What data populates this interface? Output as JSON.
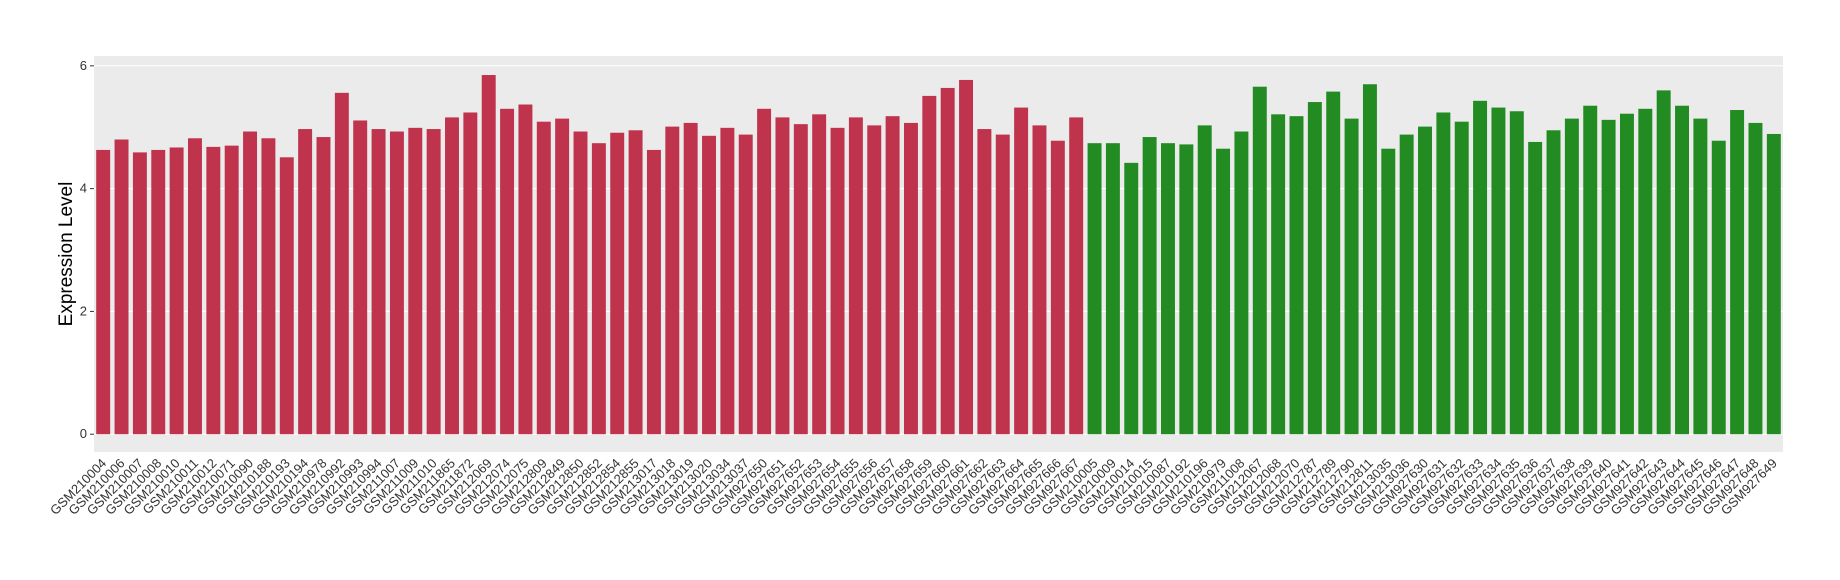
{
  "chart_data": {
    "type": "bar",
    "y_label": "Expression Level",
    "categories": [
      "GSM210004",
      "GSM210006",
      "GSM210007",
      "GSM210008",
      "GSM210010",
      "GSM210011",
      "GSM210012",
      "GSM210071",
      "GSM210090",
      "GSM210188",
      "GSM210193",
      "GSM210194",
      "GSM210978",
      "GSM210992",
      "GSM210993",
      "GSM210994",
      "GSM211007",
      "GSM211009",
      "GSM211010",
      "GSM211865",
      "GSM211872",
      "GSM212069",
      "GSM212074",
      "GSM212075",
      "GSM212809",
      "GSM212849",
      "GSM212850",
      "GSM212852",
      "GSM212854",
      "GSM212855",
      "GSM213017",
      "GSM213018",
      "GSM213019",
      "GSM213020",
      "GSM213034",
      "GSM213037",
      "GSM927650",
      "GSM927651",
      "GSM927652",
      "GSM927653",
      "GSM927654",
      "GSM927655",
      "GSM927656",
      "GSM927657",
      "GSM927658",
      "GSM927659",
      "GSM927660",
      "GSM927661",
      "GSM927662",
      "GSM927663",
      "GSM927664",
      "GSM927665",
      "GSM927666",
      "GSM927667",
      "GSM210005",
      "GSM210009",
      "GSM210014",
      "GSM210015",
      "GSM210087",
      "GSM210192",
      "GSM210196",
      "GSM210979",
      "GSM211008",
      "GSM212067",
      "GSM212068",
      "GSM212070",
      "GSM212787",
      "GSM212789",
      "GSM212790",
      "GSM212811",
      "GSM213035",
      "GSM213036",
      "GSM927630",
      "GSM927631",
      "GSM927632",
      "GSM927633",
      "GSM927634",
      "GSM927635",
      "GSM927636",
      "GSM927637",
      "GSM927638",
      "GSM927639",
      "GSM927640",
      "GSM927641",
      "GSM927642",
      "GSM927643",
      "GSM927644",
      "GSM927645",
      "GSM927646",
      "GSM927647",
      "GSM927648",
      "GSM927649"
    ],
    "values": [
      4.63,
      4.8,
      4.59,
      4.63,
      4.67,
      4.82,
      4.68,
      4.7,
      4.93,
      4.82,
      4.51,
      4.97,
      4.84,
      5.56,
      5.11,
      4.97,
      4.93,
      4.99,
      4.97,
      5.16,
      5.24,
      5.85,
      5.3,
      5.37,
      5.09,
      5.14,
      4.93,
      4.74,
      4.91,
      4.95,
      4.63,
      5.01,
      5.07,
      4.86,
      4.99,
      4.88,
      5.3,
      5.16,
      5.05,
      5.21,
      4.99,
      5.16,
      5.03,
      5.18,
      5.07,
      5.51,
      5.64,
      5.77,
      4.97,
      4.88,
      5.32,
      5.03,
      4.78,
      5.16,
      4.74,
      4.74,
      4.42,
      4.84,
      4.74,
      4.72,
      5.03,
      4.65,
      4.93,
      5.66,
      5.21,
      5.18,
      5.41,
      5.58,
      5.14,
      5.7,
      4.65,
      4.88,
      5.01,
      5.24,
      5.09,
      5.43,
      5.32,
      5.26,
      4.76,
      4.95,
      5.14,
      5.35,
      5.12,
      5.22,
      5.3,
      5.6,
      5.35,
      5.14,
      4.78,
      5.28,
      5.07,
      4.89
    ],
    "colors": [
      "#c0334d",
      "#c0334d",
      "#c0334d",
      "#c0334d",
      "#c0334d",
      "#c0334d",
      "#c0334d",
      "#c0334d",
      "#c0334d",
      "#c0334d",
      "#c0334d",
      "#c0334d",
      "#c0334d",
      "#c0334d",
      "#c0334d",
      "#c0334d",
      "#c0334d",
      "#c0334d",
      "#c0334d",
      "#c0334d",
      "#c0334d",
      "#c0334d",
      "#c0334d",
      "#c0334d",
      "#c0334d",
      "#c0334d",
      "#c0334d",
      "#c0334d",
      "#c0334d",
      "#c0334d",
      "#c0334d",
      "#c0334d",
      "#c0334d",
      "#c0334d",
      "#c0334d",
      "#c0334d",
      "#c0334d",
      "#c0334d",
      "#c0334d",
      "#c0334d",
      "#c0334d",
      "#c0334d",
      "#c0334d",
      "#c0334d",
      "#c0334d",
      "#c0334d",
      "#c0334d",
      "#c0334d",
      "#c0334d",
      "#c0334d",
      "#c0334d",
      "#c0334d",
      "#c0334d",
      "#c0334d",
      "#228b22",
      "#228b22",
      "#228b22",
      "#228b22",
      "#228b22",
      "#228b22",
      "#228b22",
      "#228b22",
      "#228b22",
      "#228b22",
      "#228b22",
      "#228b22",
      "#228b22",
      "#228b22",
      "#228b22",
      "#228b22",
      "#228b22",
      "#228b22",
      "#228b22",
      "#228b22",
      "#228b22",
      "#228b22",
      "#228b22",
      "#228b22",
      "#228b22",
      "#228b22",
      "#228b22",
      "#228b22",
      "#228b22",
      "#228b22",
      "#228b22",
      "#228b22",
      "#228b22",
      "#228b22",
      "#228b22",
      "#228b22",
      "#228b22",
      "#228b22"
    ],
    "ylim": [
      -0.29,
      6.16
    ],
    "yticks": [
      0,
      2,
      4,
      6
    ],
    "grid": true
  }
}
